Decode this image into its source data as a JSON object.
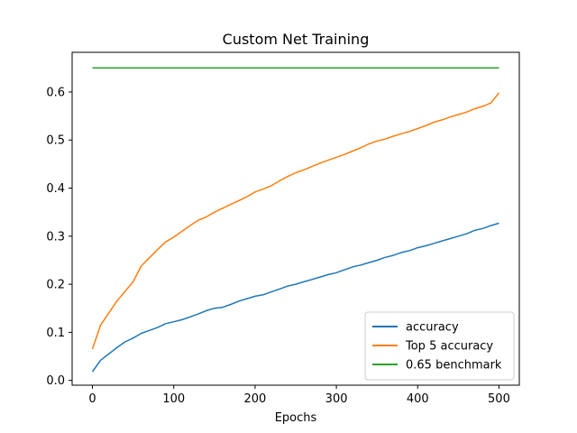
{
  "chart_data": {
    "type": "line",
    "title": "Custom Net Training",
    "xlabel": "Epochs",
    "ylabel": "",
    "xlim": [
      -25,
      525
    ],
    "ylim": [
      -0.01,
      0.6825
    ],
    "xticks": [
      0,
      100,
      200,
      300,
      400,
      500
    ],
    "yticks": [
      0.0,
      0.1,
      0.2,
      0.3,
      0.4,
      0.5,
      0.6
    ],
    "legend_position": "lower-right",
    "grid": false,
    "series": [
      {
        "name": "accuracy",
        "color": "#1f77b4",
        "x": [
          0,
          10,
          20,
          30,
          40,
          50,
          60,
          70,
          80,
          90,
          100,
          110,
          120,
          130,
          140,
          150,
          160,
          170,
          180,
          190,
          200,
          210,
          220,
          230,
          240,
          250,
          260,
          270,
          280,
          290,
          300,
          310,
          320,
          330,
          340,
          350,
          360,
          370,
          380,
          390,
          400,
          410,
          420,
          430,
          440,
          450,
          460,
          470,
          480,
          490,
          500
        ],
        "y": [
          0.018,
          0.042,
          0.055,
          0.068,
          0.08,
          0.088,
          0.098,
          0.104,
          0.11,
          0.118,
          0.122,
          0.126,
          0.132,
          0.138,
          0.145,
          0.15,
          0.152,
          0.158,
          0.165,
          0.17,
          0.175,
          0.178,
          0.184,
          0.19,
          0.196,
          0.2,
          0.205,
          0.21,
          0.215,
          0.22,
          0.224,
          0.23,
          0.236,
          0.24,
          0.245,
          0.25,
          0.256,
          0.26,
          0.266,
          0.27,
          0.276,
          0.28,
          0.285,
          0.29,
          0.295,
          0.3,
          0.305,
          0.312,
          0.316,
          0.322,
          0.327
        ]
      },
      {
        "name": "Top 5 accuracy",
        "color": "#ff7f0e",
        "x": [
          0,
          10,
          20,
          30,
          40,
          50,
          60,
          70,
          80,
          90,
          100,
          110,
          120,
          130,
          140,
          150,
          160,
          170,
          180,
          190,
          200,
          210,
          220,
          230,
          240,
          250,
          260,
          270,
          280,
          290,
          300,
          310,
          320,
          330,
          340,
          350,
          360,
          370,
          380,
          390,
          400,
          410,
          420,
          430,
          440,
          450,
          460,
          470,
          480,
          490,
          500
        ],
        "y": [
          0.065,
          0.115,
          0.14,
          0.165,
          0.185,
          0.205,
          0.238,
          0.255,
          0.272,
          0.288,
          0.298,
          0.31,
          0.322,
          0.333,
          0.34,
          0.35,
          0.358,
          0.366,
          0.374,
          0.382,
          0.392,
          0.398,
          0.405,
          0.415,
          0.424,
          0.432,
          0.438,
          0.445,
          0.452,
          0.458,
          0.464,
          0.47,
          0.477,
          0.484,
          0.492,
          0.498,
          0.502,
          0.508,
          0.513,
          0.518,
          0.524,
          0.53,
          0.537,
          0.542,
          0.548,
          0.553,
          0.558,
          0.565,
          0.57,
          0.577,
          0.598
        ]
      },
      {
        "name": "0.65 benchmark",
        "color": "#2ca02c",
        "x": [
          0,
          500
        ],
        "y": [
          0.65,
          0.65
        ]
      }
    ]
  }
}
